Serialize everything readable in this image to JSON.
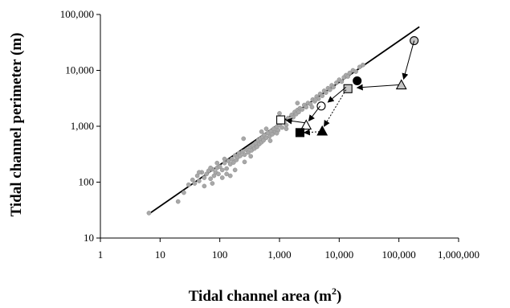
{
  "chart_data": {
    "type": "scatter",
    "title": "",
    "xlabel": "Tidal channel area (m",
    "xlabel_sup": "2",
    "xlabel_suffix": ")",
    "ylabel": "Tidal channel perimeter (m)",
    "xscale": "log",
    "yscale": "log",
    "xlim": [
      1,
      1000000
    ],
    "ylim": [
      10,
      100000
    ],
    "grid": false,
    "legend": "none",
    "x_ticks": [
      1,
      10,
      100,
      1000,
      10000,
      100000,
      1000000
    ],
    "x_tick_labels": [
      "1",
      "10",
      "100",
      "1,000",
      "10,000",
      "100,000",
      "1,000,000"
    ],
    "y_ticks": [
      10,
      100,
      1000,
      10000,
      100000
    ],
    "y_tick_labels": [
      "10",
      "100",
      "1,000",
      "10,000",
      "100,000"
    ],
    "series": [
      {
        "marker": "circle-small",
        "color": "#a8a8a8",
        "points": [
          [
            6.5,
            28
          ],
          [
            20,
            45
          ],
          [
            25,
            65
          ],
          [
            30,
            90
          ],
          [
            35,
            110
          ],
          [
            38,
            95
          ],
          [
            42,
            130
          ],
          [
            45,
            105
          ],
          [
            50,
            150
          ],
          [
            55,
            120
          ],
          [
            60,
            140
          ],
          [
            65,
            160
          ],
          [
            70,
            115
          ],
          [
            75,
            170
          ],
          [
            80,
            130
          ],
          [
            85,
            150
          ],
          [
            90,
            180
          ],
          [
            95,
            140
          ],
          [
            100,
            190
          ],
          [
            110,
            165
          ],
          [
            120,
            220
          ],
          [
            130,
            175
          ],
          [
            140,
            240
          ],
          [
            150,
            210
          ],
          [
            160,
            260
          ],
          [
            170,
            225
          ],
          [
            180,
            300
          ],
          [
            190,
            250
          ],
          [
            200,
            280
          ],
          [
            210,
            330
          ],
          [
            220,
            295
          ],
          [
            240,
            350
          ],
          [
            260,
            310
          ],
          [
            280,
            380
          ],
          [
            300,
            340
          ],
          [
            320,
            420
          ],
          [
            340,
            370
          ],
          [
            360,
            450
          ],
          [
            380,
            400
          ],
          [
            400,
            500
          ],
          [
            420,
            430
          ],
          [
            440,
            560
          ],
          [
            460,
            480
          ],
          [
            480,
            600
          ],
          [
            500,
            520
          ],
          [
            520,
            640
          ],
          [
            540,
            560
          ],
          [
            560,
            700
          ],
          [
            600,
            620
          ],
          [
            640,
            760
          ],
          [
            680,
            660
          ],
          [
            720,
            820
          ],
          [
            760,
            720
          ],
          [
            800,
            900
          ],
          [
            850,
            780
          ],
          [
            900,
            980
          ],
          [
            950,
            850
          ],
          [
            1000,
            1050
          ],
          [
            1100,
            950
          ],
          [
            1200,
            1200
          ],
          [
            1300,
            1050
          ],
          [
            1400,
            1400
          ],
          [
            1500,
            1250
          ],
          [
            1600,
            1600
          ],
          [
            1700,
            1450
          ],
          [
            1800,
            1800
          ],
          [
            1900,
            1650
          ],
          [
            2000,
            1950
          ],
          [
            2100,
            1800
          ],
          [
            2200,
            2100
          ],
          [
            2400,
            2000
          ],
          [
            2600,
            2400
          ],
          [
            2800,
            2200
          ],
          [
            3000,
            2600
          ],
          [
            3300,
            2500
          ],
          [
            3600,
            3000
          ],
          [
            3900,
            2800
          ],
          [
            4200,
            3400
          ],
          [
            4500,
            3100
          ],
          [
            4800,
            3800
          ],
          [
            5200,
            3500
          ],
          [
            5600,
            4300
          ],
          [
            6000,
            4000
          ],
          [
            6500,
            4800
          ],
          [
            7000,
            4500
          ],
          [
            7500,
            5400
          ],
          [
            8000,
            5000
          ],
          [
            9000,
            6000
          ],
          [
            10000,
            6800
          ],
          [
            11000,
            6300
          ],
          [
            12000,
            7500
          ],
          [
            13000,
            8200
          ],
          [
            14000,
            7800
          ],
          [
            15000,
            9000
          ],
          [
            17000,
            10000
          ],
          [
            19000,
            9500
          ],
          [
            22000,
            11500
          ],
          [
            25000,
            12500
          ],
          [
            150,
            130
          ],
          [
            55,
            85
          ],
          [
            75,
            95
          ],
          [
            130,
            140
          ],
          [
            260,
            230
          ],
          [
            330,
            290
          ],
          [
            700,
            550
          ],
          [
            900,
            750
          ],
          [
            1300,
            900
          ],
          [
            3500,
            2200
          ],
          [
            4000,
            3000
          ],
          [
            250,
            600
          ],
          [
            500,
            800
          ],
          [
            1000,
            1700
          ],
          [
            2000,
            2600
          ],
          [
            600,
            900
          ],
          [
            120,
            260
          ],
          [
            90,
            220
          ],
          [
            45,
            150
          ],
          [
            70,
            180
          ],
          [
            110,
            120
          ],
          [
            180,
            165
          ]
        ]
      },
      {
        "name": "",
        "marker": "circle-filled-gray",
        "color": "#b0b0b0",
        "points": [
          [
            180000,
            34000
          ]
        ]
      },
      {
        "name": "",
        "marker": "triangle-filled-gray",
        "color": "#c4c4c4",
        "points": [
          [
            110000,
            5500
          ]
        ]
      },
      {
        "name": "",
        "marker": "square-filled-gray",
        "color": "#c4c4c4",
        "points": [
          [
            14000,
            4700
          ]
        ]
      },
      {
        "name": "",
        "marker": "circle-filled-black",
        "color": "#000000",
        "points": [
          [
            20000,
            6500
          ]
        ]
      },
      {
        "name": "",
        "marker": "circle-open",
        "color": "#ffffff",
        "points": [
          [
            5000,
            2300
          ]
        ]
      },
      {
        "name": "",
        "marker": "square-open",
        "color": "#ffffff",
        "points": [
          [
            1050,
            1300
          ]
        ]
      },
      {
        "name": "",
        "marker": "triangle-open",
        "color": "#ffffff",
        "points": [
          [
            2800,
            1050
          ]
        ]
      },
      {
        "name": "",
        "marker": "square-filled-black",
        "color": "#000000",
        "points": [
          [
            2200,
            770
          ]
        ]
      },
      {
        "name": "",
        "marker": "triangle-filled-black",
        "color": "#000000",
        "points": [
          [
            5200,
            820
          ]
        ]
      }
    ],
    "fit_line": {
      "x": [
        6.5,
        220000
      ],
      "y": [
        27,
        60000
      ]
    },
    "arrows": [
      {
        "from": [
          180000,
          34000
        ],
        "to": [
          120000,
          7000
        ],
        "style": "solid"
      },
      {
        "from": [
          100000,
          5500
        ],
        "to": [
          20000,
          4900
        ],
        "style": "solid"
      },
      {
        "from": [
          13000,
          5000
        ],
        "to": [
          6500,
          2700
        ],
        "style": "solid"
      },
      {
        "from": [
          4800,
          2300
        ],
        "to": [
          3100,
          1250
        ],
        "style": "solid"
      },
      {
        "from": [
          2700,
          1150
        ],
        "to": [
          1300,
          1280
        ],
        "style": "solid"
      },
      {
        "from": [
          13000,
          4500
        ],
        "to": [
          5600,
          1000
        ],
        "style": "dotted"
      },
      {
        "from": [
          4700,
          800
        ],
        "to": [
          2600,
          770
        ],
        "style": "dotted"
      }
    ]
  }
}
